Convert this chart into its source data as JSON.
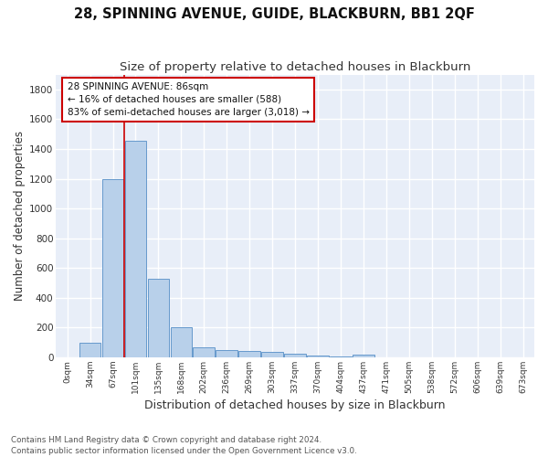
{
  "title": "28, SPINNING AVENUE, GUIDE, BLACKBURN, BB1 2QF",
  "subtitle": "Size of property relative to detached houses in Blackburn",
  "xlabel": "Distribution of detached houses by size in Blackburn",
  "ylabel": "Number of detached properties",
  "bar_labels": [
    "0sqm",
    "34sqm",
    "67sqm",
    "101sqm",
    "135sqm",
    "168sqm",
    "202sqm",
    "236sqm",
    "269sqm",
    "303sqm",
    "337sqm",
    "370sqm",
    "404sqm",
    "437sqm",
    "471sqm",
    "505sqm",
    "538sqm",
    "572sqm",
    "606sqm",
    "639sqm",
    "673sqm"
  ],
  "bar_values": [
    0,
    95,
    1200,
    1455,
    530,
    205,
    70,
    50,
    45,
    35,
    27,
    13,
    5,
    15,
    0,
    0,
    0,
    0,
    0,
    0,
    0
  ],
  "bar_color": "#b8d0ea",
  "bar_edge_color": "#6699cc",
  "background_color": "#e8eef8",
  "grid_color": "#ffffff",
  "vline_x": 2.5,
  "vline_color": "#cc0000",
  "annotation_text": "28 SPINNING AVENUE: 86sqm\n← 16% of detached houses are smaller (588)\n83% of semi-detached houses are larger (3,018) →",
  "annotation_box_color": "#ffffff",
  "annotation_box_edge": "#cc0000",
  "ylim": [
    0,
    1900
  ],
  "yticks": [
    0,
    200,
    400,
    600,
    800,
    1000,
    1200,
    1400,
    1600,
    1800
  ],
  "footer": "Contains HM Land Registry data © Crown copyright and database right 2024.\nContains public sector information licensed under the Open Government Licence v3.0.",
  "fig_bg": "#ffffff",
  "title_fontsize": 10.5,
  "subtitle_fontsize": 9.5,
  "ylabel_fontsize": 8.5,
  "xlabel_fontsize": 9
}
